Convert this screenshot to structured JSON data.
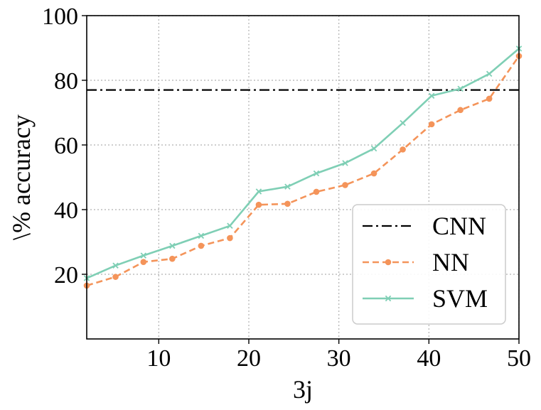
{
  "chart_data": {
    "type": "line",
    "title": "",
    "xlabel": "3j",
    "ylabel": "\\% accuracy",
    "xlim": [
      2,
      50
    ],
    "ylim": [
      0,
      100
    ],
    "xticks": [
      10,
      20,
      30,
      40,
      50
    ],
    "yticks": [
      20,
      40,
      60,
      80,
      100
    ],
    "grid": true,
    "legend_position": "lower-right",
    "x": [
      2,
      5.2,
      8.3,
      11.5,
      14.7,
      17.9,
      21.1,
      24.3,
      27.5,
      30.7,
      33.9,
      37.1,
      40.3,
      43.5,
      46.7,
      50
    ],
    "series": [
      {
        "name": "CNN",
        "style": "dashdot",
        "color": "#000000",
        "marker": "none",
        "constant": 77
      },
      {
        "name": "NN",
        "style": "dashed",
        "color": "#f4945a",
        "marker": "circle",
        "values": [
          16.5,
          19.2,
          23.8,
          24.8,
          28.8,
          31.2,
          41.5,
          41.8,
          45.5,
          47.6,
          51.2,
          58.6,
          66.4,
          70.8,
          74.3,
          87.5
        ]
      },
      {
        "name": "SVM",
        "style": "solid",
        "color": "#7fcfb5",
        "marker": "x",
        "values": [
          18.8,
          22.7,
          25.8,
          28.8,
          31.9,
          35.0,
          45.6,
          47.1,
          51.2,
          54.4,
          58.9,
          66.8,
          75.2,
          77.4,
          82.0,
          89.8
        ]
      }
    ]
  }
}
